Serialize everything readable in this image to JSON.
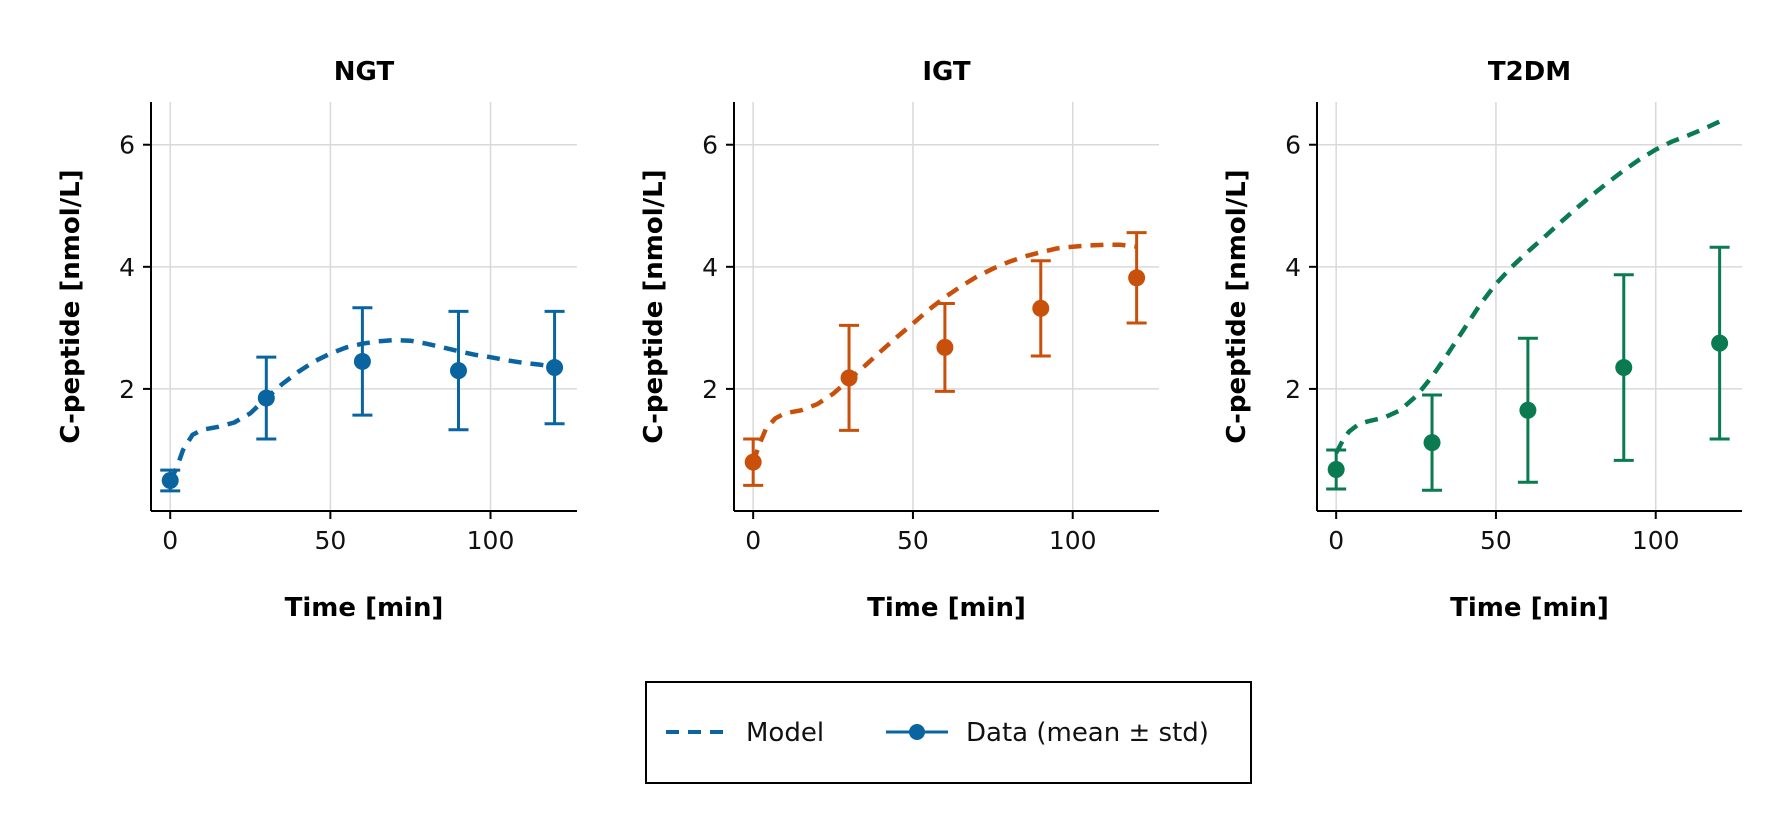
{
  "chart_data": [
    {
      "type": "line",
      "title": "NGT",
      "xlabel": "Time [min]",
      "ylabel": "C-peptide [nmol/L]",
      "xlim": [
        -6,
        127
      ],
      "ylim": [
        0,
        6.7
      ],
      "xticks": [
        0,
        50,
        100
      ],
      "yticks": [
        2,
        4,
        6
      ],
      "grid": true,
      "color": "#0a64a0",
      "model": {
        "x": [
          0,
          2,
          4,
          7,
          10,
          15,
          20,
          25,
          30,
          35,
          40,
          45,
          50,
          55,
          60,
          65,
          70,
          75,
          80,
          85,
          90,
          95,
          100,
          105,
          110,
          115,
          120
        ],
        "y": [
          0.5,
          0.7,
          1.0,
          1.25,
          1.33,
          1.38,
          1.45,
          1.6,
          1.85,
          2.08,
          2.28,
          2.45,
          2.58,
          2.68,
          2.74,
          2.78,
          2.8,
          2.79,
          2.74,
          2.68,
          2.62,
          2.56,
          2.52,
          2.47,
          2.43,
          2.4,
          2.36
        ]
      },
      "data": {
        "x": [
          0,
          30,
          60,
          90,
          120
        ],
        "mean": [
          0.5,
          1.85,
          2.45,
          2.3,
          2.35
        ],
        "std": [
          0.17,
          0.67,
          0.88,
          0.97,
          0.92
        ]
      }
    },
    {
      "type": "line",
      "title": "IGT",
      "xlabel": "Time [min]",
      "ylabel": "C-peptide [nmol/L]",
      "xlim": [
        -6,
        127
      ],
      "ylim": [
        0,
        6.7
      ],
      "xticks": [
        0,
        50,
        100
      ],
      "yticks": [
        2,
        4,
        6
      ],
      "grid": true,
      "color": "#c9500a",
      "model": {
        "x": [
          0,
          2,
          4,
          7,
          10,
          15,
          20,
          25,
          30,
          35,
          40,
          45,
          50,
          55,
          60,
          65,
          70,
          75,
          80,
          85,
          90,
          95,
          100,
          105,
          110,
          115,
          120
        ],
        "y": [
          0.8,
          1.1,
          1.35,
          1.52,
          1.6,
          1.65,
          1.75,
          1.92,
          2.15,
          2.38,
          2.62,
          2.85,
          3.07,
          3.3,
          3.5,
          3.68,
          3.84,
          3.97,
          4.08,
          4.17,
          4.24,
          4.3,
          4.33,
          4.35,
          4.36,
          4.36,
          4.33
        ]
      },
      "data": {
        "x": [
          0,
          30,
          60,
          90,
          120
        ],
        "mean": [
          0.8,
          2.18,
          2.68,
          3.32,
          3.82
        ],
        "std": [
          0.38,
          0.86,
          0.72,
          0.78,
          0.74
        ]
      }
    },
    {
      "type": "line",
      "title": "T2DM",
      "xlabel": "Time [min]",
      "ylabel": "C-peptide [nmol/L]",
      "xlim": [
        -6,
        127
      ],
      "ylim": [
        0,
        6.7
      ],
      "xticks": [
        0,
        50,
        100
      ],
      "yticks": [
        2,
        4,
        6
      ],
      "grid": true,
      "color": "#0a7a50",
      "model": {
        "x": [
          0,
          2,
          4,
          7,
          10,
          15,
          20,
          25,
          30,
          35,
          40,
          45,
          50,
          55,
          60,
          65,
          70,
          75,
          80,
          85,
          90,
          95,
          100,
          105,
          110,
          115,
          120
        ],
        "y": [
          0.95,
          1.15,
          1.3,
          1.42,
          1.47,
          1.53,
          1.65,
          1.88,
          2.2,
          2.58,
          2.98,
          3.38,
          3.72,
          4.0,
          4.25,
          4.48,
          4.72,
          4.95,
          5.17,
          5.38,
          5.58,
          5.76,
          5.92,
          6.05,
          6.15,
          6.26,
          6.38
        ]
      },
      "data": {
        "x": [
          0,
          30,
          60,
          90,
          120
        ],
        "mean": [
          0.68,
          1.12,
          1.65,
          2.35,
          2.75
        ],
        "std": [
          0.32,
          0.78,
          1.18,
          1.52,
          1.57
        ]
      }
    }
  ],
  "legend": {
    "position": "bottom-center",
    "items": [
      {
        "label": "Model",
        "style": "dashed",
        "color": "#0a64a0"
      },
      {
        "label": "Data (mean ± std)",
        "style": "line-marker",
        "color": "#0a64a0"
      }
    ]
  }
}
